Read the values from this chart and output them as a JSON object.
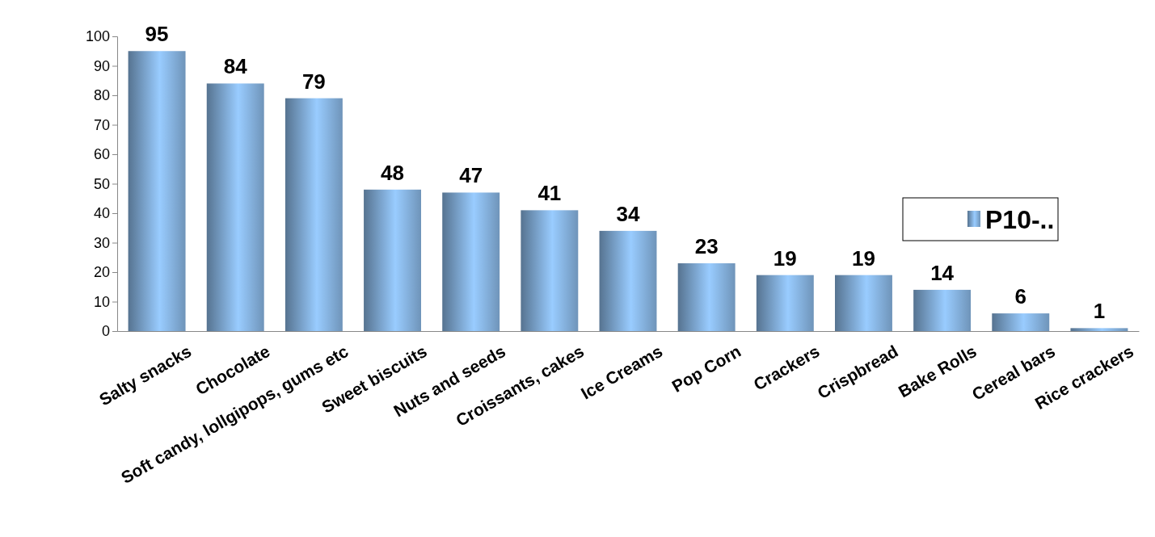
{
  "chart_data": {
    "type": "bar",
    "categories": [
      "Salty  snacks",
      "Chocolate",
      "Soft candy, lollgipops, gums etc",
      "Sweet biscuits",
      "Nuts and seeds",
      "Croissants, cakes",
      "Ice Creams",
      "Pop Corn",
      "Crackers",
      "Crispbread",
      "Bake Rolls",
      "Cereal bars",
      "Rice crackers"
    ],
    "series": [
      {
        "name": "P10-..",
        "color": "#99ccff",
        "values": [
          95,
          84,
          79,
          48,
          47,
          41,
          34,
          23,
          19,
          19,
          14,
          6,
          1
        ]
      }
    ],
    "ylim": [
      0,
      100
    ],
    "yticks": [
      0,
      10,
      20,
      30,
      40,
      50,
      60,
      70,
      80,
      90,
      100
    ],
    "data_labels": true,
    "legend": "right",
    "grid": false
  }
}
